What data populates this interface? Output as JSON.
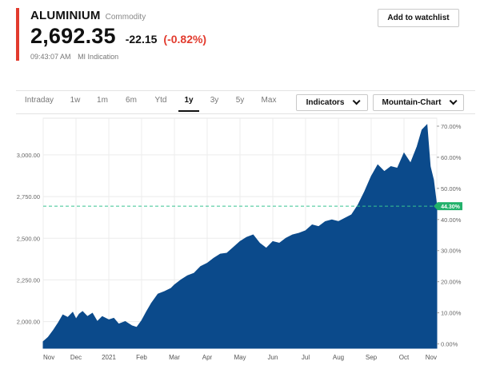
{
  "quote": {
    "name": "ALUMINIUM",
    "category": "Commodity",
    "price": "2,692.35",
    "change": "-22.15",
    "change_pct": "(-0.82%)",
    "time": "09:43:07 AM",
    "source": "MI Indication",
    "change_color": "#e23b2e"
  },
  "actions": {
    "watchlist_label": "Add to watchlist"
  },
  "toolbar": {
    "tabs": [
      "Intraday",
      "1w",
      "1m",
      "6m",
      "Ytd",
      "1y",
      "3y",
      "5y",
      "Max"
    ],
    "active_tab": "1y",
    "indicators_label": "Indicators",
    "chart_type_label": "Mountain-Chart"
  },
  "chart_data": {
    "type": "area",
    "title": "",
    "xlabel": "",
    "ylabel": "",
    "fill_color": "#0b4a8b",
    "reference_line_color": "#37c391",
    "badge_color": "#22b16b",
    "current_marker_label": "44.30%",
    "current_value": 2692.35,
    "grid": true,
    "ylim": [
      1840,
      3220
    ],
    "y_ticks": [
      2000,
      2250,
      2500,
      2750,
      3000
    ],
    "y_tick_labels": [
      "2,000.00",
      "2,250.00",
      "2,500.00",
      "2,750.00",
      "3,000.00"
    ],
    "right_ticks": [
      "0.00%",
      "10.00%",
      "20.00%",
      "30.00%",
      "40.00%",
      "50.00%",
      "60.00%",
      "70.00%"
    ],
    "right_tick_pct": [
      0,
      10,
      20,
      30,
      40,
      50,
      60,
      70
    ],
    "pct_base": 1866,
    "x_labels": [
      "Nov",
      "Dec",
      "2021",
      "Feb",
      "Mar",
      "Apr",
      "May",
      "Jun",
      "Jul",
      "Aug",
      "Sep",
      "Oct",
      "Nov"
    ],
    "x_label_positions": [
      0,
      1,
      2,
      3,
      4,
      5,
      6,
      7,
      8,
      9,
      10,
      11,
      12
    ],
    "series": [
      {
        "x": [
          0,
          0.15,
          0.3,
          0.45,
          0.6,
          0.75,
          0.9,
          1.0,
          1.1,
          1.2,
          1.35,
          1.5,
          1.65,
          1.8,
          2.0,
          2.15,
          2.3,
          2.5,
          2.7,
          2.85,
          3.0,
          3.15,
          3.3,
          3.5,
          3.7,
          3.9,
          4.0,
          4.2,
          4.4,
          4.6,
          4.8,
          5.0,
          5.2,
          5.4,
          5.6,
          5.8,
          6.0,
          6.2,
          6.4,
          6.6,
          6.8,
          7.0,
          7.2,
          7.4,
          7.6,
          7.8,
          8.0,
          8.2,
          8.4,
          8.6,
          8.8,
          9.0,
          9.2,
          9.4,
          9.6,
          9.8,
          10.0,
          10.2,
          10.4,
          10.6,
          10.8,
          11.0,
          11.2,
          11.4,
          11.55,
          11.7,
          11.8,
          11.9,
          12.0
        ],
        "values": [
          1880,
          1905,
          1945,
          1990,
          2040,
          2025,
          2055,
          2015,
          2045,
          2060,
          2030,
          2050,
          2000,
          2030,
          2010,
          2020,
          1985,
          2000,
          1975,
          1965,
          2005,
          2060,
          2110,
          2165,
          2180,
          2200,
          2220,
          2250,
          2275,
          2290,
          2330,
          2350,
          2380,
          2405,
          2410,
          2445,
          2480,
          2505,
          2520,
          2470,
          2440,
          2480,
          2470,
          2500,
          2520,
          2530,
          2545,
          2580,
          2570,
          2600,
          2610,
          2600,
          2620,
          2640,
          2700,
          2780,
          2870,
          2940,
          2900,
          2930,
          2920,
          3010,
          2950,
          3050,
          3150,
          3180,
          2930,
          2850,
          2692
        ]
      }
    ]
  }
}
